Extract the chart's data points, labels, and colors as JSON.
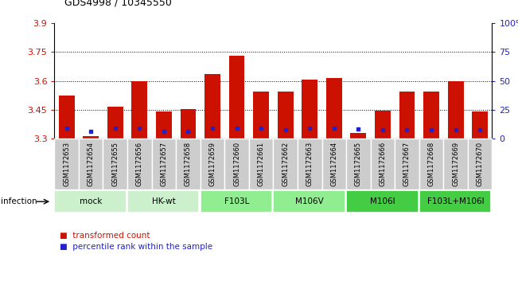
{
  "title": "GDS4998 / 10345550",
  "samples": [
    "GSM1172653",
    "GSM1172654",
    "GSM1172655",
    "GSM1172656",
    "GSM1172657",
    "GSM1172658",
    "GSM1172659",
    "GSM1172660",
    "GSM1172661",
    "GSM1172662",
    "GSM1172663",
    "GSM1172664",
    "GSM1172665",
    "GSM1172666",
    "GSM1172667",
    "GSM1172668",
    "GSM1172669",
    "GSM1172670"
  ],
  "bar_values": [
    3.525,
    3.315,
    3.465,
    3.6,
    3.44,
    3.455,
    3.635,
    3.73,
    3.545,
    3.545,
    3.605,
    3.615,
    3.33,
    3.445,
    3.545,
    3.545,
    3.6,
    3.44
  ],
  "blue_values": [
    3.355,
    3.34,
    3.355,
    3.355,
    3.34,
    3.34,
    3.355,
    3.355,
    3.355,
    3.345,
    3.355,
    3.355,
    3.35,
    3.345,
    3.345,
    3.345,
    3.345,
    3.345
  ],
  "ymin": 3.3,
  "ymax": 3.9,
  "yticks": [
    3.3,
    3.45,
    3.6,
    3.75,
    3.9
  ],
  "right_yticks": [
    0,
    25,
    50,
    75,
    100
  ],
  "groups": [
    {
      "label": "mock",
      "start": 0,
      "end": 2,
      "color": "#ccf0cc"
    },
    {
      "label": "HK-wt",
      "start": 3,
      "end": 5,
      "color": "#ccf0cc"
    },
    {
      "label": "F103L",
      "start": 6,
      "end": 8,
      "color": "#90EE90"
    },
    {
      "label": "M106V",
      "start": 9,
      "end": 11,
      "color": "#90EE90"
    },
    {
      "label": "M106I",
      "start": 12,
      "end": 14,
      "color": "#44CC44"
    },
    {
      "label": "F103L+M106I",
      "start": 15,
      "end": 17,
      "color": "#44CC44"
    }
  ],
  "bar_color": "#CC1100",
  "blue_color": "#2222CC",
  "left_axis_color": "#CC1100",
  "right_axis_color": "#2222CC",
  "label_bg_color": "#cccccc",
  "label_border_color": "#aaaaaa"
}
